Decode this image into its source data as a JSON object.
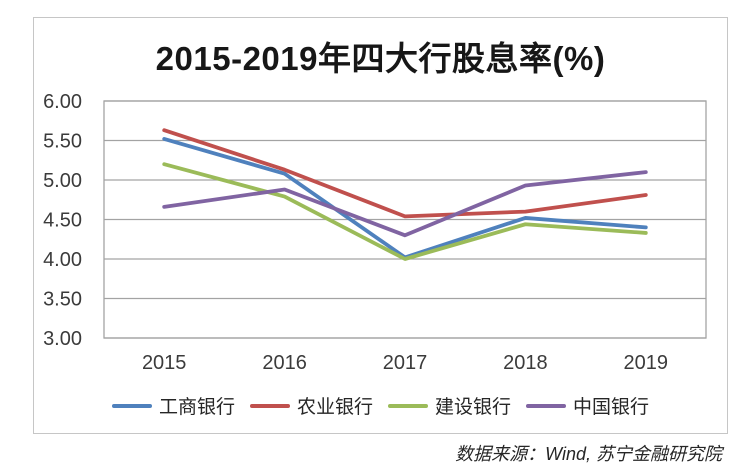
{
  "card": {
    "title": "2015-2019年四大行股息率(%)"
  },
  "footer": {
    "source_note": "数据来源：Wind, 苏宁金融研究院"
  },
  "chart_data": {
    "type": "line",
    "title": "2015-2019年四大行股息率(%)",
    "categories": [
      "2015",
      "2016",
      "2017",
      "2018",
      "2019"
    ],
    "series": [
      {
        "name": "工商银行",
        "color": "#4f81bd",
        "values": [
          5.52,
          5.08,
          4.02,
          4.52,
          4.4
        ]
      },
      {
        "name": "农业银行",
        "color": "#c0504d",
        "values": [
          5.63,
          5.13,
          4.54,
          4.6,
          4.81
        ]
      },
      {
        "name": "建设银行",
        "color": "#9bbb59",
        "values": [
          5.2,
          4.79,
          4.0,
          4.44,
          4.33
        ]
      },
      {
        "name": "中国银行",
        "color": "#8064a2",
        "values": [
          4.66,
          4.88,
          4.3,
          4.93,
          5.1
        ]
      }
    ],
    "ylim": [
      3.0,
      6.0
    ],
    "ytick_step": 0.5,
    "ytick_labels": [
      "6.00",
      "5.50",
      "5.00",
      "4.50",
      "4.00",
      "3.50",
      "3.00"
    ],
    "xlabel": "",
    "ylabel": "",
    "grid": true,
    "legend_position": "bottom",
    "gridline_color": "#a3a3a3",
    "axis_text_color": "#3b3b3b",
    "line_width": 3.8
  }
}
